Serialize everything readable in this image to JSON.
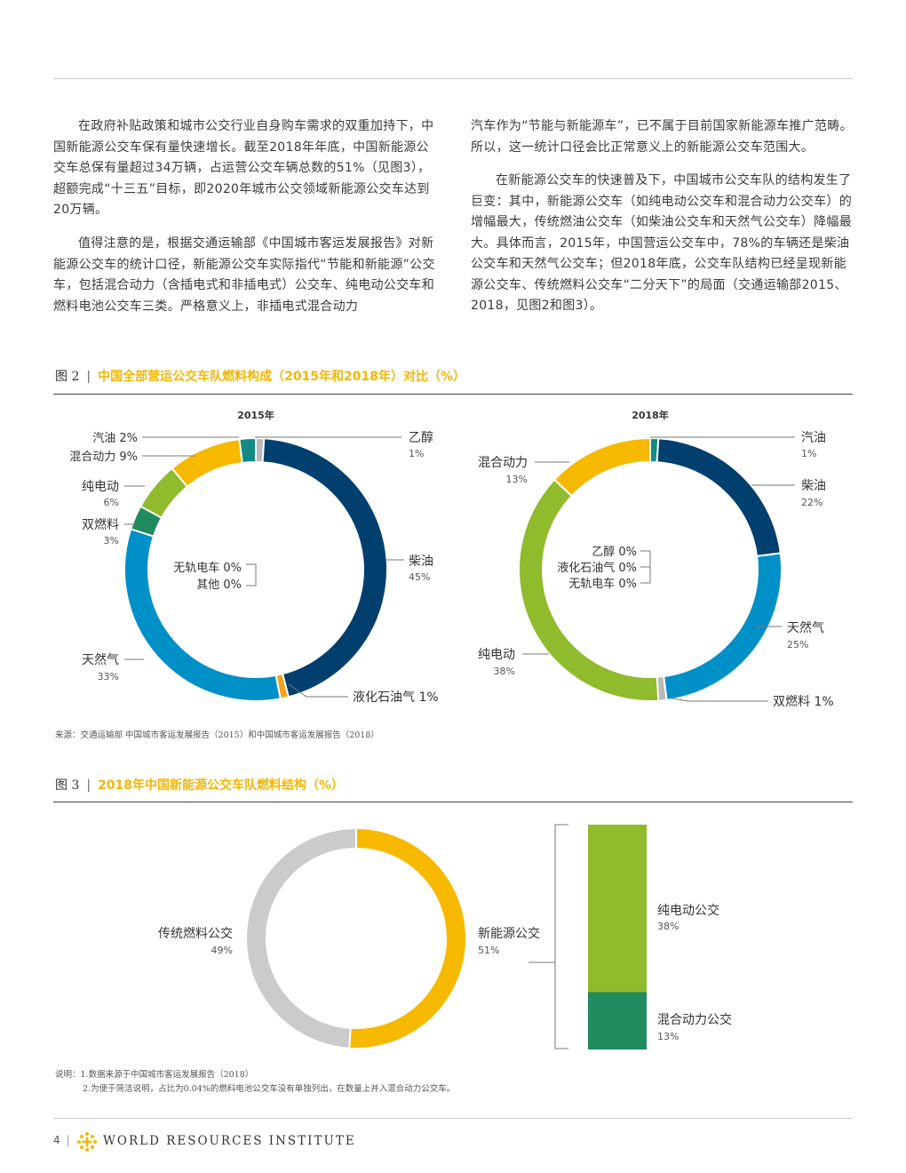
{
  "body_text": {
    "left_p1": "在政府补贴政策和城市公交行业自身购车需求的双重加持下，中国新能源公交车保有量快速增长。截至2018年年底，中国新能源公交车总保有量超过34万辆，占运营公交车辆总数的51%（见图3），超额完成“十三五”目标，即2020年城市公交领域新能源公交车达到20万辆。",
    "left_p2": "值得注意的是，根据交通运输部《中国城市客运发展报告》对新能源公交车的统计口径，新能源公交车实际指代“节能和新能源”公交车，包括混合动力（含插电式和非插电式）公交车、纯电动公交车和燃料电池公交车三类。严格意义上，非插电式混合动力",
    "right_p1": "汽车作为“节能与新能源车”，已不属于目前国家新能源车推广范畴。所以，这一统计口径会比正常意义上的新能源公交车范围大。",
    "right_p2": "在新能源公交车的快速普及下，中国城市公交车队的结构发生了巨变：其中，新能源公交车（如纯电动公交车和混合动力公交车）的增幅最大，传统燃油公交车（如柴油公交车和天然气公交车）降幅最大。具体而言，2015年，中国营运公交车中，78%的车辆还是柴油公交车和天然气公交车；但2018年底，公交车队结构已经呈现新能源公交车、传统燃料公交车“二分天下”的局面（交通运输部2015、2018，见图2和图3）。"
  },
  "figure2": {
    "number": "图 2",
    "separator": "|",
    "title": "中国全部营运公交车队燃料构成（2015年和2018年）对比（%）",
    "source": "来源：交通运输部 中国城市客运发展报告（2015）和中国城市客运发展报告（2018）"
  },
  "figure3": {
    "number": "图 3",
    "separator": "|",
    "title": "2018年中国新能源公交车队燃料结构（%）",
    "notes": [
      "说明：1.数据来源于中国城市客运发展报告（2018）",
      "2.为便于简洁说明，占比为0.04%的燃料电池公交车没有单独列出，在数量上并入混合动力公交车。"
    ]
  },
  "footer": {
    "page": "4",
    "separator": "|",
    "org": "WORLD RESOURCES INSTITUTE"
  },
  "chart_data": [
    {
      "type": "pie",
      "title": "2015年",
      "categories": [
        "乙醇",
        "柴油",
        "液化石油气",
        "天然气",
        "双燃料",
        "纯电动",
        "混合动力",
        "汽油",
        "无轨电车",
        "其他"
      ],
      "values": [
        1,
        45,
        1,
        33,
        3,
        6,
        9,
        2,
        0,
        0
      ],
      "labels": {
        "ethanol": {
          "name": "乙醇",
          "pct": "1%"
        },
        "diesel": {
          "name": "柴油",
          "pct": "45%"
        },
        "lpg": {
          "name": "液化石油气 1%"
        },
        "cng": {
          "name": "天然气",
          "pct": "33%"
        },
        "dual": {
          "name": "双燃料",
          "pct": "3%"
        },
        "ev": {
          "name": "纯电动",
          "pct": "6%"
        },
        "hybrid": {
          "name": "混合动力 9%"
        },
        "gasoline": {
          "name": "汽油 2%"
        },
        "trolley": {
          "name": "无轨电车 0%"
        },
        "other": {
          "name": "其他 0%"
        }
      }
    },
    {
      "type": "pie",
      "title": "2018年",
      "categories": [
        "汽油",
        "柴油",
        "天然气",
        "双燃料",
        "纯电动",
        "混合动力",
        "乙醇",
        "液化石油气",
        "无轨电车"
      ],
      "values": [
        1,
        22,
        25,
        1,
        38,
        13,
        0,
        0,
        0
      ],
      "labels": {
        "gasoline": {
          "name": "汽油",
          "pct": "1%"
        },
        "diesel": {
          "name": "柴油",
          "pct": "22%"
        },
        "cng": {
          "name": "天然气",
          "pct": "25%"
        },
        "dual": {
          "name": "双燃料 1%"
        },
        "ev": {
          "name": "纯电动",
          "pct": "38%"
        },
        "hybrid": {
          "name": "混合动力",
          "pct": "13%"
        },
        "ethanol": {
          "name": "乙醇 0%"
        },
        "lpg": {
          "name": "液化石油气 0%"
        },
        "trolley": {
          "name": "无轨电车 0%"
        }
      }
    },
    {
      "type": "pie",
      "title": "",
      "categories": [
        "新能源公交",
        "传统燃料公交"
      ],
      "values": [
        51,
        49
      ],
      "labels": {
        "new_energy": {
          "name": "新能源公交",
          "pct": "51%"
        },
        "traditional": {
          "name": "传统燃料公交",
          "pct": "49%"
        }
      }
    },
    {
      "type": "bar",
      "title": "",
      "categories": [
        "纯电动公交",
        "混合动力公交"
      ],
      "values": [
        38,
        13
      ],
      "labels": {
        "ev": {
          "name": "纯电动公交",
          "pct": "38%"
        },
        "hybrid": {
          "name": "混合动力公交",
          "pct": "13%"
        }
      }
    }
  ],
  "colors": {
    "diesel": "#003f6e",
    "cng": "#0090c8",
    "ev": "#8fbb2c",
    "dual": "#1f8b5e",
    "hybrid": "#f7b900",
    "gasoline": "#138a86",
    "ethanol": "#b9b9b9",
    "lpg": "#f2a31b",
    "traditional": "#cbcbcb",
    "accent": "#f2b705"
  }
}
